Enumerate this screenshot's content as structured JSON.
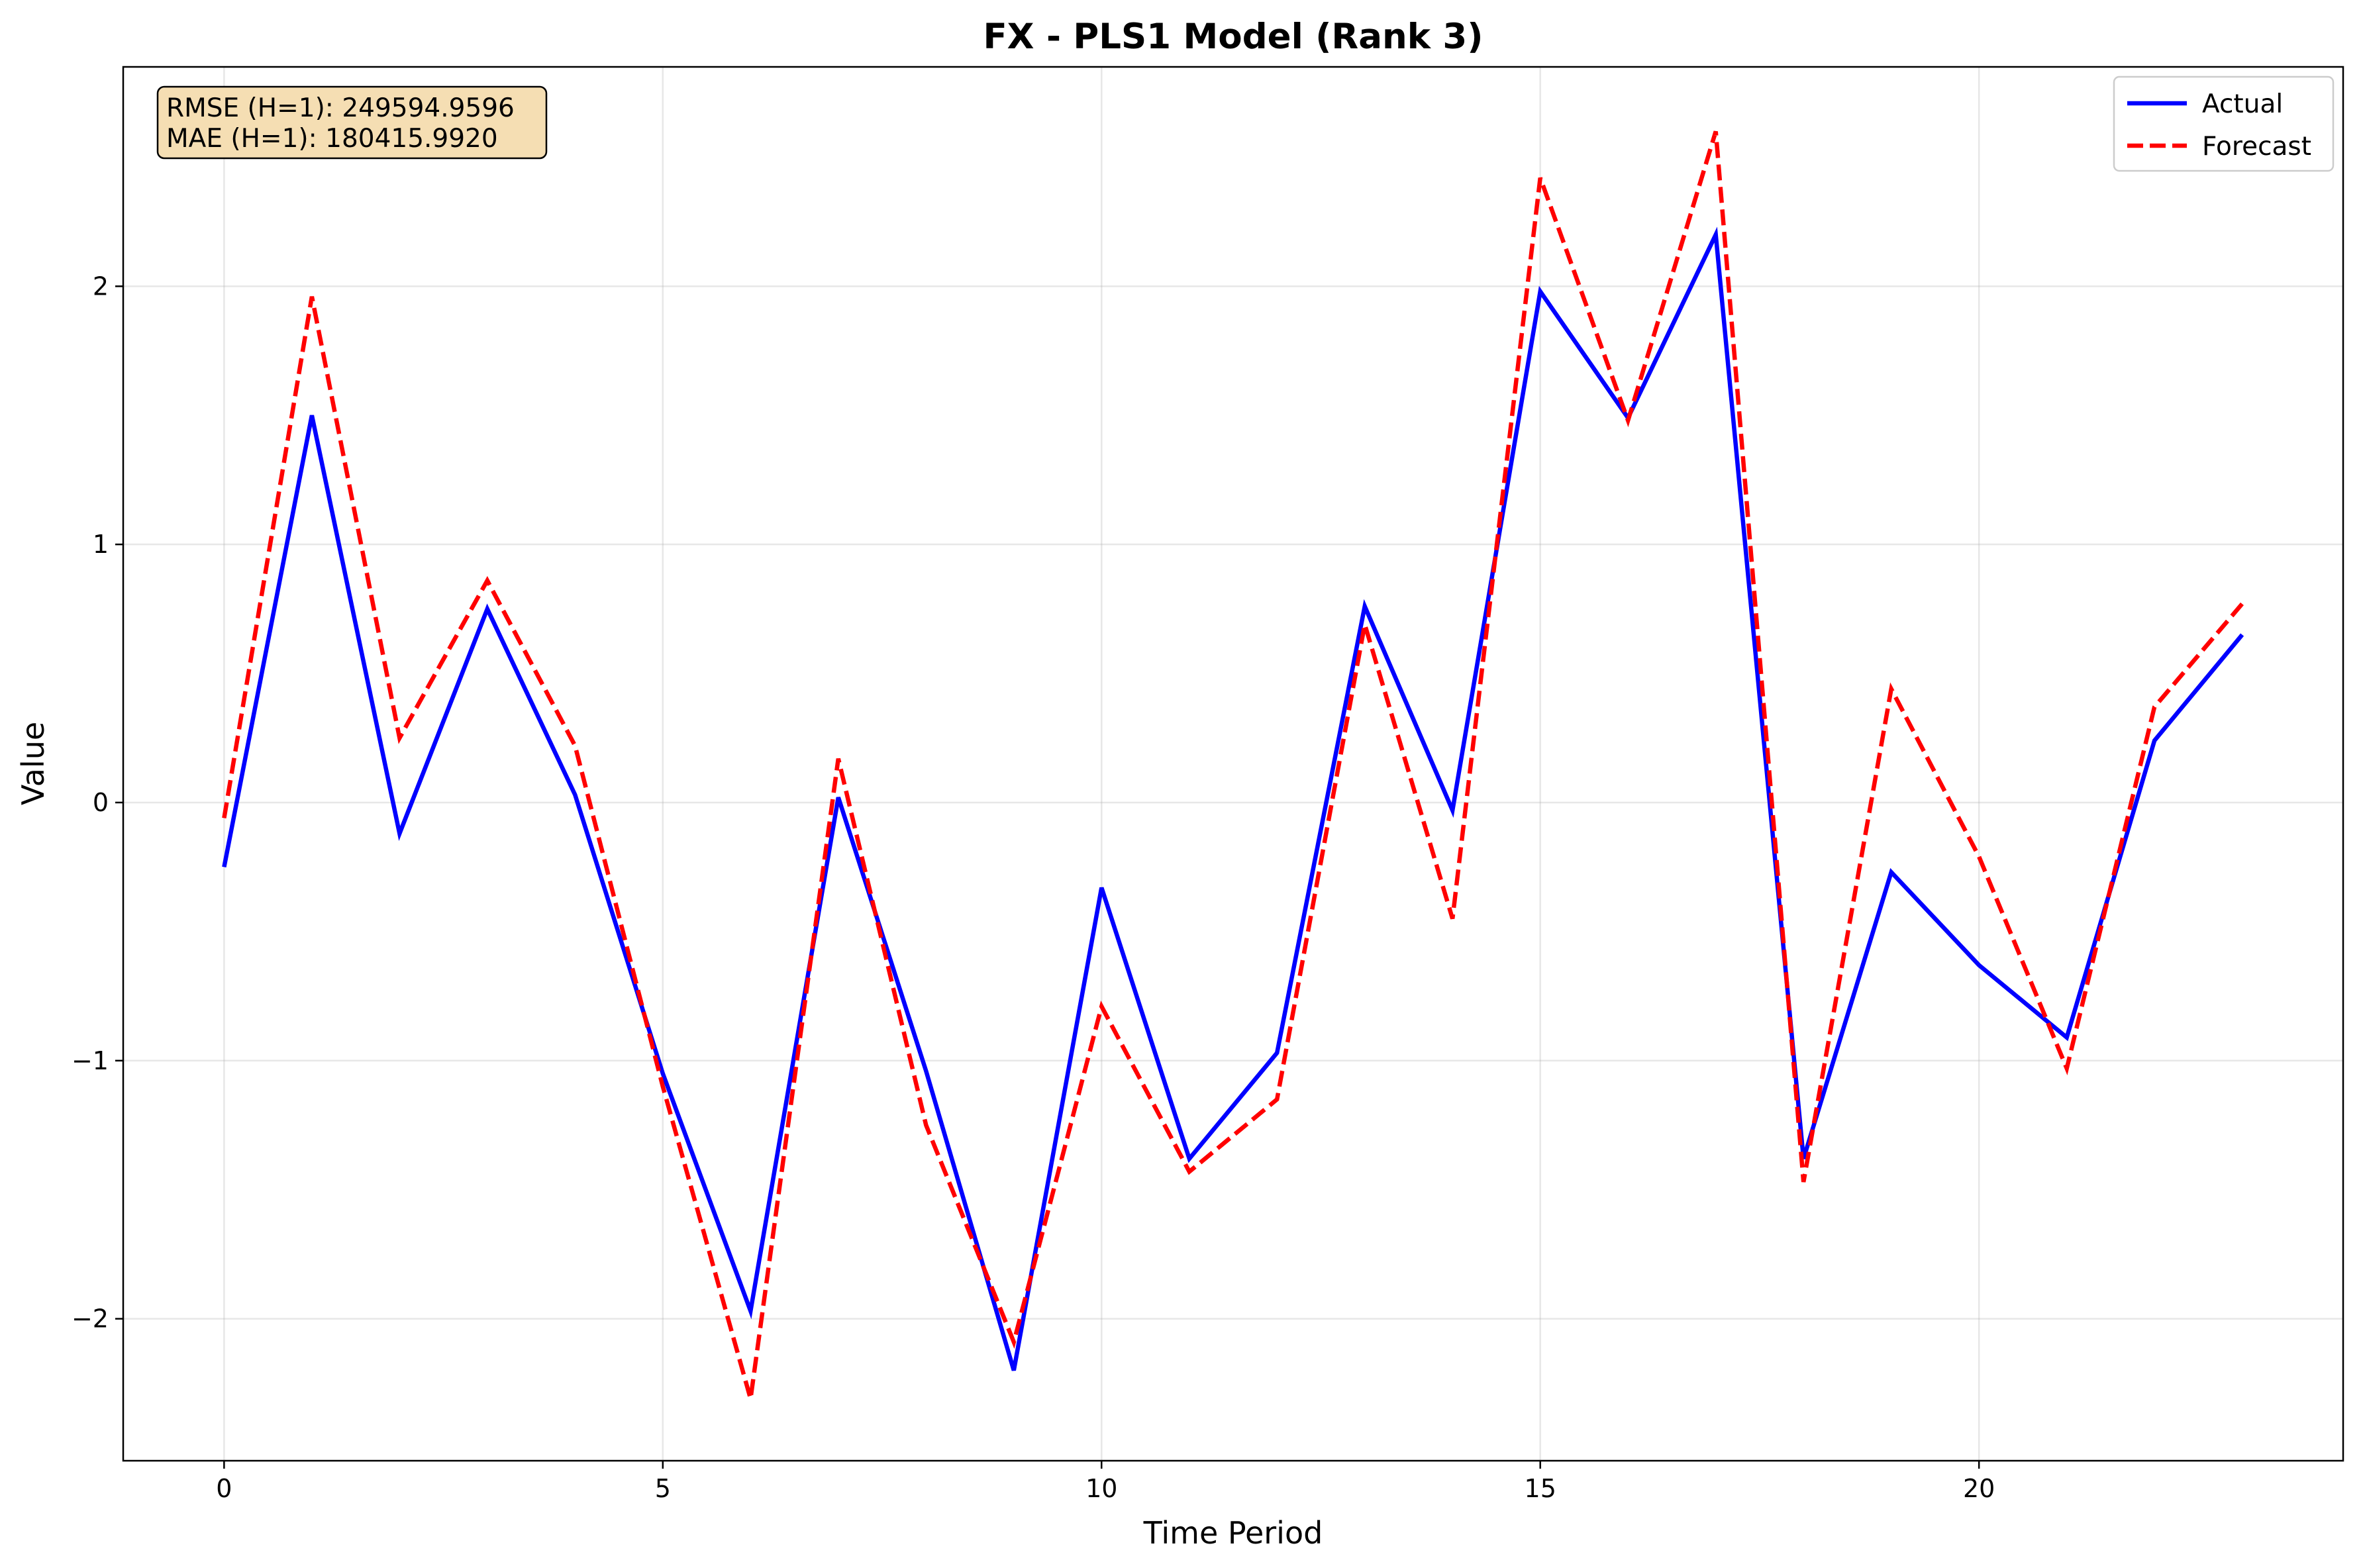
{
  "chart_data": {
    "type": "line",
    "title": "FX - PLS1 Model (Rank 3)",
    "xlabel": "Time Period",
    "ylabel": "Value",
    "xlim": [
      -1.15,
      24.15
    ],
    "ylim": [
      -2.55,
      2.85
    ],
    "xticks": [
      0,
      5,
      10,
      15,
      20
    ],
    "xtick_labels": [
      "0",
      "5",
      "10",
      "15",
      "20"
    ],
    "yticks": [
      -2,
      -1,
      0,
      1,
      2
    ],
    "ytick_labels": [
      "−2",
      "−1",
      "0",
      "1",
      "2"
    ],
    "grid": true,
    "legend_position": "top-right",
    "x": [
      0,
      1,
      2,
      3,
      4,
      5,
      6,
      7,
      8,
      9,
      10,
      11,
      12,
      13,
      14,
      15,
      16,
      17,
      18,
      19,
      20,
      21,
      22,
      23
    ],
    "series": [
      {
        "name": "Actual",
        "color": "#0000ff",
        "style": "solid",
        "values": [
          -0.25,
          1.5,
          -0.12,
          0.75,
          0.03,
          -1.05,
          -1.97,
          0.02,
          -1.04,
          -2.2,
          -0.33,
          -1.38,
          -0.97,
          0.76,
          -0.03,
          1.98,
          1.49,
          2.2,
          -1.38,
          -0.27,
          -0.63,
          -0.91,
          0.24,
          0.65
        ]
      },
      {
        "name": "Forecast",
        "color": "#ff0000",
        "style": "dashed",
        "values": [
          -0.06,
          1.96,
          0.25,
          0.86,
          0.22,
          -1.1,
          -2.31,
          0.17,
          -1.25,
          -2.09,
          -0.79,
          -1.43,
          -1.15,
          0.69,
          -0.45,
          2.42,
          1.48,
          2.6,
          -1.47,
          0.44,
          -0.21,
          -1.03,
          0.37,
          0.77
        ]
      }
    ],
    "metrics": {
      "rmse": "RMSE (H=1): 249594.9596",
      "mae": "MAE (H=1): 180415.9920"
    }
  }
}
